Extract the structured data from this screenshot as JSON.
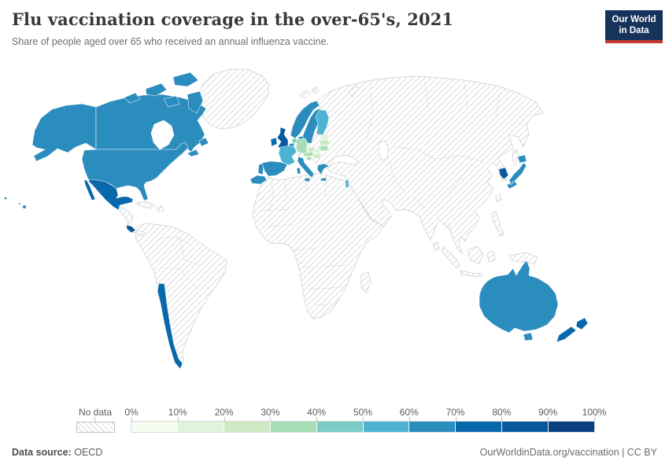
{
  "header": {
    "title": "Flu vaccination coverage in the over-65's, 2021",
    "subtitle": "Share of people aged over 65 who received an annual influenza vaccine.",
    "logo": {
      "line1": "Our World",
      "line2": "in Data",
      "bg_color": "#16335b",
      "stripe_color": "#c43a33"
    }
  },
  "legend": {
    "no_data_label": "No data",
    "tick_labels": [
      "0%",
      "10%",
      "20%",
      "30%",
      "40%",
      "50%",
      "60%",
      "70%",
      "80%",
      "90%",
      "100%"
    ]
  },
  "footer": {
    "source_label": "Data source:",
    "source_value": "OECD",
    "right_text": "OurWorldinData.org/vaccination | CC BY"
  },
  "chart_data": {
    "type": "choropleth_map",
    "title": "Flu vaccination coverage in the over-65's, 2021",
    "unit": "% of people aged over 65 receiving an annual influenza vaccine",
    "year": "2021",
    "bins": [
      "0-10%",
      "10-20%",
      "20-30%",
      "30-40%",
      "40-50%",
      "50-60%",
      "60-70%",
      "70-80%",
      "80-90%",
      "90-100%"
    ],
    "bin_colors": [
      "#f7fcf0",
      "#e0f3db",
      "#ccebc5",
      "#a8ddb5",
      "#7bccc4",
      "#4eb3d3",
      "#2b8cbe",
      "#0868ac",
      "#08589e",
      "#084081"
    ],
    "no_data": {
      "label": "No data",
      "style": "diagonal-hatch"
    },
    "countries": [
      {
        "id": "usa",
        "name": "United States",
        "band": "60-70%",
        "bin": 6
      },
      {
        "id": "canada",
        "name": "Canada",
        "band": "60-70%",
        "bin": 6
      },
      {
        "id": "mexico",
        "name": "Mexico",
        "band": "70-80%",
        "bin": 7
      },
      {
        "id": "costa-rica",
        "name": "Costa Rica",
        "band": "80-90%",
        "bin": 8
      },
      {
        "id": "chile",
        "name": "Chile",
        "band": "70-80%",
        "bin": 7
      },
      {
        "id": "iceland",
        "name": "Iceland",
        "band": "60-70%",
        "bin": 6
      },
      {
        "id": "uk",
        "name": "United Kingdom",
        "band": "80-90%",
        "bin": 8
      },
      {
        "id": "ireland",
        "name": "Ireland",
        "band": "70-80%",
        "bin": 7
      },
      {
        "id": "norway",
        "name": "Norway",
        "band": "60-70%",
        "bin": 6
      },
      {
        "id": "sweden",
        "name": "Sweden",
        "band": "60-70%",
        "bin": 6
      },
      {
        "id": "denmark",
        "name": "Denmark",
        "band": "60-70%",
        "bin": 6
      },
      {
        "id": "finland",
        "name": "Finland",
        "band": "50-60%",
        "bin": 5
      },
      {
        "id": "estonia",
        "name": "Estonia",
        "band": "10-20%",
        "bin": 1
      },
      {
        "id": "latvia",
        "name": "Latvia",
        "band": "20-30%",
        "bin": 2
      },
      {
        "id": "lithuania",
        "name": "Lithuania",
        "band": "30-40%",
        "bin": 3
      },
      {
        "id": "netherlands",
        "name": "Netherlands",
        "band": "40-50%",
        "bin": 4
      },
      {
        "id": "belgium",
        "name": "Belgium",
        "band": "60-70%",
        "bin": 6
      },
      {
        "id": "germany",
        "name": "Germany",
        "band": "30-40%",
        "bin": 3
      },
      {
        "id": "france",
        "name": "France",
        "band": "50-60%",
        "bin": 5
      },
      {
        "id": "switzerland",
        "name": "Switzerland",
        "band": "10-20%",
        "bin": 1
      },
      {
        "id": "czechia",
        "name": "Czechia",
        "band": "20-30%",
        "bin": 2
      },
      {
        "id": "slovakia",
        "name": "Slovakia",
        "band": "10-20%",
        "bin": 1
      },
      {
        "id": "austria",
        "name": "Austria",
        "band": "30-40%",
        "bin": 3
      },
      {
        "id": "hungary",
        "name": "Hungary",
        "band": "20-30%",
        "bin": 2
      },
      {
        "id": "slovenia",
        "name": "Slovenia",
        "band": "30-40%",
        "bin": 3
      },
      {
        "id": "spain",
        "name": "Spain",
        "band": "60-70%",
        "bin": 6
      },
      {
        "id": "portugal",
        "name": "Portugal",
        "band": "60-70%",
        "bin": 6
      },
      {
        "id": "italy",
        "name": "Italy",
        "band": "60-70%",
        "bin": 6
      },
      {
        "id": "greece",
        "name": "Greece",
        "band": "60-70%",
        "bin": 6
      },
      {
        "id": "israel",
        "name": "Israel",
        "band": "50-60%",
        "bin": 5
      },
      {
        "id": "south-korea",
        "name": "South Korea",
        "band": "80-90%",
        "bin": 8
      },
      {
        "id": "japan",
        "name": "Japan",
        "band": "60-70%",
        "bin": 6
      },
      {
        "id": "australia",
        "name": "Australia",
        "band": "60-70%",
        "bin": 6
      },
      {
        "id": "new-zealand",
        "name": "New Zealand",
        "band": "70-80%",
        "bin": 7
      }
    ],
    "no_data_regions": [
      "Greenland",
      "Russia",
      "China",
      "India",
      "Central & Southeast Asia",
      "Middle East (except Israel)",
      "Africa",
      "South America (except Chile)",
      "Central America (parts)",
      "Caribbean",
      "Eastern Europe (parts)",
      "Indonesia & Pacific islands"
    ]
  },
  "map": {
    "ocean_color": "#ffffff",
    "no_data_border": "#cdcdcd",
    "hatch_line_color": "#dedede"
  }
}
